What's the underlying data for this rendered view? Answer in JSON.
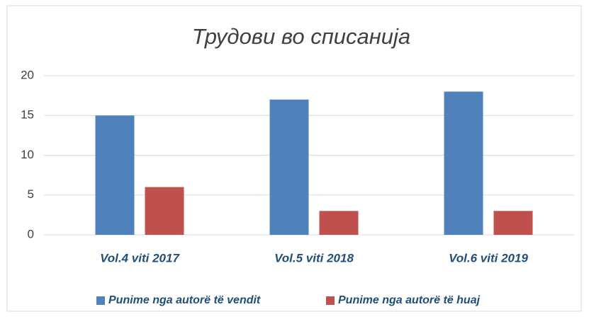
{
  "chart_data": {
    "type": "bar",
    "title": "Трудови во списанија",
    "categories": [
      "Vol.4 viti 2017",
      "Vol.5 viti 2018",
      "Vol.6 viti 2019"
    ],
    "series": [
      {
        "name": "Punime nga autorë të vendit",
        "color": "#4f81bd",
        "values": [
          15,
          17,
          18
        ]
      },
      {
        "name": "Punime nga autorë të huaj",
        "color": "#c0504d",
        "values": [
          6,
          3,
          3
        ]
      }
    ],
    "ylim": [
      0,
      20
    ],
    "yticks": [
      0,
      5,
      10,
      15,
      20
    ],
    "grid": true,
    "legend": "bottom"
  }
}
